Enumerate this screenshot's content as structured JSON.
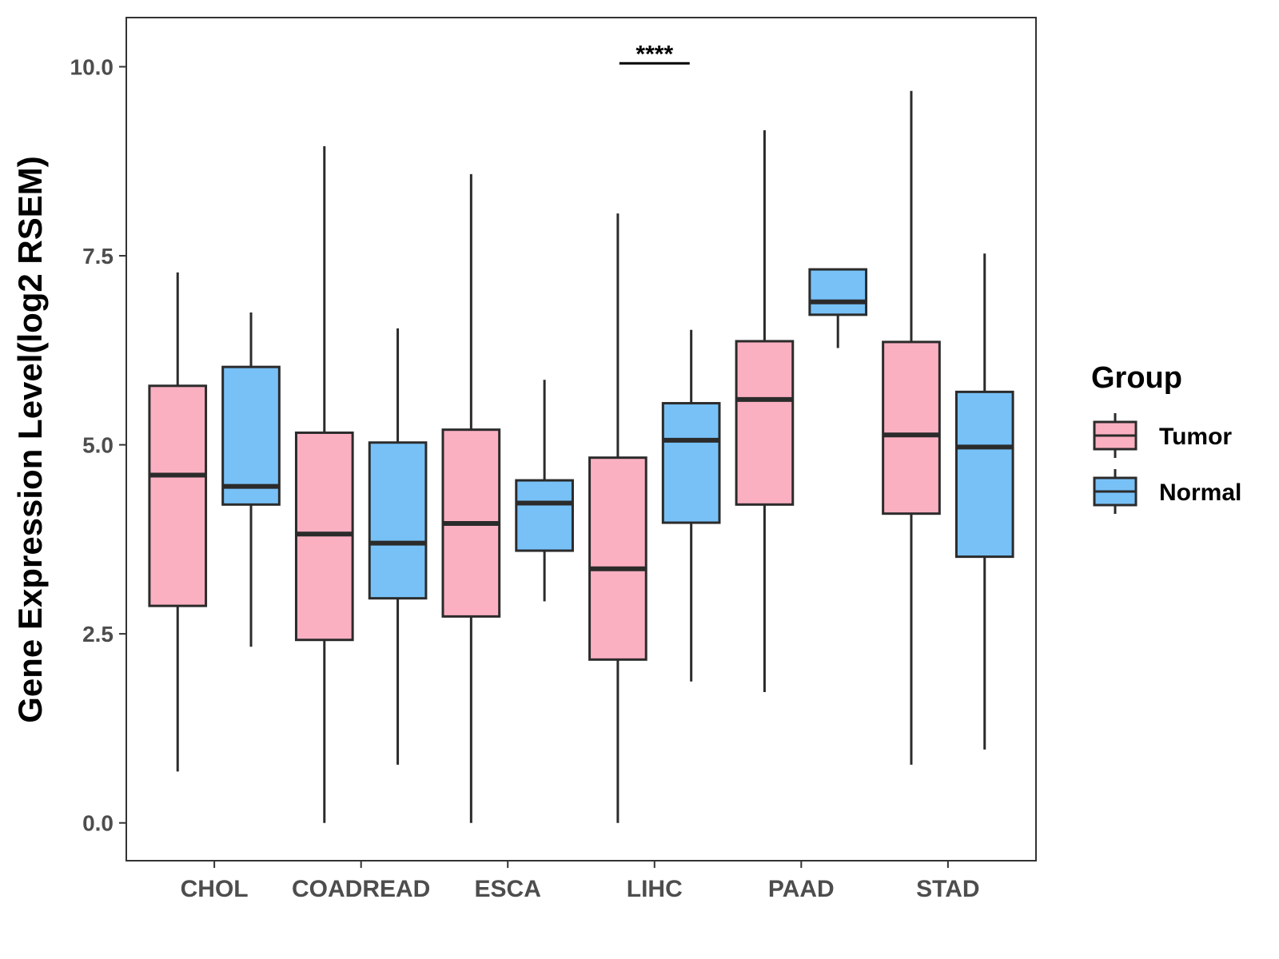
{
  "chart_data": {
    "type": "boxplot",
    "title": "",
    "xlabel": "",
    "ylabel": "Gene Expression Level(log2 RSEM)",
    "ylim": [
      -0.5,
      10.65
    ],
    "yticks": [
      0.0,
      2.5,
      5.0,
      7.5,
      10.0
    ],
    "ytick_labels": [
      "0.0",
      "2.5",
      "5.0",
      "7.5",
      "10.0"
    ],
    "categories": [
      "CHOL",
      "COADREAD",
      "ESCA",
      "LIHC",
      "PAAD",
      "STAD"
    ],
    "legend": {
      "title": "Group",
      "placement": "right",
      "items": [
        {
          "label": "Tumor",
          "color": "#fbb0c2"
        },
        {
          "label": "Normal",
          "color": "#77c1f7"
        }
      ]
    },
    "series": [
      {
        "name": "Tumor",
        "color": "#fbb0c2",
        "boxes": [
          {
            "category": "CHOL",
            "min": 0.68,
            "q1": 2.87,
            "median": 4.6,
            "q3": 5.78,
            "max": 7.28
          },
          {
            "category": "COADREAD",
            "min": 0.0,
            "q1": 2.42,
            "median": 3.82,
            "q3": 5.16,
            "max": 8.95
          },
          {
            "category": "ESCA",
            "min": 0.0,
            "q1": 2.73,
            "median": 3.96,
            "q3": 5.2,
            "max": 8.58
          },
          {
            "category": "LIHC",
            "min": 0.0,
            "q1": 2.16,
            "median": 3.36,
            "q3": 4.83,
            "max": 8.06
          },
          {
            "category": "PAAD",
            "min": 1.73,
            "q1": 4.21,
            "median": 5.6,
            "q3": 6.37,
            "max": 9.16
          },
          {
            "category": "STAD",
            "min": 0.77,
            "q1": 4.09,
            "median": 5.13,
            "q3": 6.36,
            "max": 9.68
          }
        ]
      },
      {
        "name": "Normal",
        "color": "#77c1f7",
        "boxes": [
          {
            "category": "CHOL",
            "min": 2.33,
            "q1": 4.21,
            "median": 4.45,
            "q3": 6.03,
            "max": 6.75
          },
          {
            "category": "COADREAD",
            "min": 0.77,
            "q1": 2.97,
            "median": 3.7,
            "q3": 5.03,
            "max": 6.54
          },
          {
            "category": "ESCA",
            "min": 2.93,
            "q1": 3.6,
            "median": 4.23,
            "q3": 4.53,
            "max": 5.86
          },
          {
            "category": "LIHC",
            "min": 1.87,
            "q1": 3.97,
            "median": 5.06,
            "q3": 5.55,
            "max": 6.52
          },
          {
            "category": "PAAD",
            "min": 6.28,
            "q1": 6.72,
            "median": 6.89,
            "q3": 7.32,
            "max": 7.32
          },
          {
            "category": "STAD",
            "min": 0.97,
            "q1": 3.52,
            "median": 4.97,
            "q3": 5.7,
            "max": 7.53
          }
        ]
      }
    ],
    "annotations": [
      {
        "category": "LIHC",
        "text": "****",
        "y": 10.15
      }
    ]
  }
}
